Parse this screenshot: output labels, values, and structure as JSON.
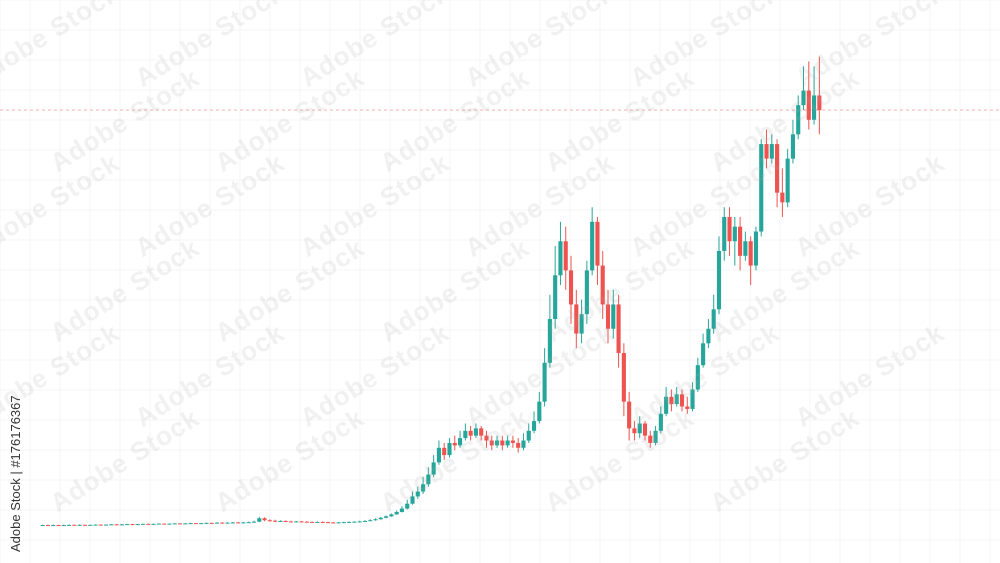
{
  "watermark": {
    "text": "Adobe Stock"
  },
  "credit": {
    "text": "Adobe Stock | #176176367"
  },
  "colors": {
    "up": "#26a69a",
    "down": "#ef5350",
    "grid": "#eeeeee",
    "reference_line": "#f4a4a4"
  },
  "chart_data": {
    "type": "candlestick",
    "title": "",
    "xlabel": "",
    "ylabel": "",
    "grid": true,
    "ylim": [
      0,
      100
    ],
    "reference_line": 86,
    "candles": [
      {
        "o": 0.5,
        "c": 0.6,
        "h": 0.7,
        "l": 0.4
      },
      {
        "o": 0.6,
        "c": 0.55,
        "h": 0.7,
        "l": 0.5
      },
      {
        "o": 0.55,
        "c": 0.6,
        "h": 0.7,
        "l": 0.5
      },
      {
        "o": 0.6,
        "c": 0.55,
        "h": 0.65,
        "l": 0.5
      },
      {
        "o": 0.55,
        "c": 0.6,
        "h": 0.7,
        "l": 0.5
      },
      {
        "o": 0.6,
        "c": 0.65,
        "h": 0.7,
        "l": 0.55
      },
      {
        "o": 0.65,
        "c": 0.6,
        "h": 0.7,
        "l": 0.55
      },
      {
        "o": 0.6,
        "c": 0.65,
        "h": 0.75,
        "l": 0.55
      },
      {
        "o": 0.65,
        "c": 0.6,
        "h": 0.7,
        "l": 0.55
      },
      {
        "o": 0.6,
        "c": 0.65,
        "h": 0.7,
        "l": 0.55
      },
      {
        "o": 0.65,
        "c": 0.7,
        "h": 0.75,
        "l": 0.6
      },
      {
        "o": 0.7,
        "c": 0.65,
        "h": 0.75,
        "l": 0.6
      },
      {
        "o": 0.65,
        "c": 0.7,
        "h": 0.75,
        "l": 0.6
      },
      {
        "o": 0.7,
        "c": 0.75,
        "h": 0.8,
        "l": 0.65
      },
      {
        "o": 0.75,
        "c": 0.7,
        "h": 0.8,
        "l": 0.65
      },
      {
        "o": 0.7,
        "c": 0.75,
        "h": 0.8,
        "l": 0.65
      },
      {
        "o": 0.75,
        "c": 0.8,
        "h": 0.85,
        "l": 0.7
      },
      {
        "o": 0.8,
        "c": 0.75,
        "h": 0.85,
        "l": 0.7
      },
      {
        "o": 0.75,
        "c": 0.8,
        "h": 0.85,
        "l": 0.7
      },
      {
        "o": 0.8,
        "c": 0.85,
        "h": 0.9,
        "l": 0.75
      },
      {
        "o": 0.85,
        "c": 0.8,
        "h": 0.9,
        "l": 0.75
      },
      {
        "o": 0.8,
        "c": 0.85,
        "h": 0.9,
        "l": 0.75
      },
      {
        "o": 0.85,
        "c": 0.9,
        "h": 0.95,
        "l": 0.8
      },
      {
        "o": 0.9,
        "c": 0.85,
        "h": 0.95,
        "l": 0.8
      },
      {
        "o": 0.85,
        "c": 0.9,
        "h": 0.95,
        "l": 0.8
      },
      {
        "o": 0.9,
        "c": 0.95,
        "h": 1.0,
        "l": 0.85
      },
      {
        "o": 0.95,
        "c": 0.9,
        "h": 1.0,
        "l": 0.85
      },
      {
        "o": 0.9,
        "c": 0.95,
        "h": 1.0,
        "l": 0.85
      },
      {
        "o": 0.95,
        "c": 1.0,
        "h": 1.05,
        "l": 0.9
      },
      {
        "o": 1.0,
        "c": 0.95,
        "h": 1.05,
        "l": 0.9
      },
      {
        "o": 0.95,
        "c": 1.0,
        "h": 1.05,
        "l": 0.9
      },
      {
        "o": 1.0,
        "c": 1.05,
        "h": 1.1,
        "l": 0.95
      },
      {
        "o": 1.05,
        "c": 1.0,
        "h": 1.1,
        "l": 0.95
      },
      {
        "o": 1.0,
        "c": 1.1,
        "h": 1.2,
        "l": 0.95
      },
      {
        "o": 1.1,
        "c": 1.05,
        "h": 1.2,
        "l": 1.0
      },
      {
        "o": 1.05,
        "c": 1.1,
        "h": 1.2,
        "l": 1.0
      },
      {
        "o": 1.1,
        "c": 1.15,
        "h": 1.25,
        "l": 1.05
      },
      {
        "o": 1.15,
        "c": 1.1,
        "h": 1.25,
        "l": 1.05
      },
      {
        "o": 1.1,
        "c": 1.15,
        "h": 1.25,
        "l": 1.05
      },
      {
        "o": 1.15,
        "c": 1.2,
        "h": 1.3,
        "l": 1.1
      },
      {
        "o": 1.2,
        "c": 1.3,
        "h": 1.5,
        "l": 1.1
      },
      {
        "o": 1.3,
        "c": 2.0,
        "h": 2.3,
        "l": 1.2
      },
      {
        "o": 2.0,
        "c": 1.6,
        "h": 2.2,
        "l": 1.4
      },
      {
        "o": 1.6,
        "c": 1.5,
        "h": 1.8,
        "l": 1.3
      },
      {
        "o": 1.5,
        "c": 1.4,
        "h": 1.7,
        "l": 1.2
      },
      {
        "o": 1.4,
        "c": 1.45,
        "h": 1.6,
        "l": 1.3
      },
      {
        "o": 1.45,
        "c": 1.35,
        "h": 1.55,
        "l": 1.2
      },
      {
        "o": 1.35,
        "c": 1.3,
        "h": 1.5,
        "l": 1.2
      },
      {
        "o": 1.3,
        "c": 1.35,
        "h": 1.45,
        "l": 1.2
      },
      {
        "o": 1.35,
        "c": 1.3,
        "h": 1.45,
        "l": 1.2
      },
      {
        "o": 1.3,
        "c": 1.25,
        "h": 1.4,
        "l": 1.15
      },
      {
        "o": 1.25,
        "c": 1.2,
        "h": 1.35,
        "l": 1.1
      },
      {
        "o": 1.2,
        "c": 1.25,
        "h": 1.35,
        "l": 1.1
      },
      {
        "o": 1.25,
        "c": 1.2,
        "h": 1.35,
        "l": 1.1
      },
      {
        "o": 1.2,
        "c": 1.15,
        "h": 1.3,
        "l": 1.05
      },
      {
        "o": 1.15,
        "c": 1.1,
        "h": 1.25,
        "l": 1.0
      },
      {
        "o": 1.1,
        "c": 1.15,
        "h": 1.25,
        "l": 1.0
      },
      {
        "o": 1.15,
        "c": 1.2,
        "h": 1.3,
        "l": 1.1
      },
      {
        "o": 1.2,
        "c": 1.25,
        "h": 1.35,
        "l": 1.1
      },
      {
        "o": 1.25,
        "c": 1.3,
        "h": 1.4,
        "l": 1.15
      },
      {
        "o": 1.3,
        "c": 1.35,
        "h": 1.5,
        "l": 1.2
      },
      {
        "o": 1.35,
        "c": 1.45,
        "h": 1.6,
        "l": 1.3
      },
      {
        "o": 1.45,
        "c": 1.6,
        "h": 1.8,
        "l": 1.4
      },
      {
        "o": 1.6,
        "c": 1.8,
        "h": 2.0,
        "l": 1.5
      },
      {
        "o": 1.8,
        "c": 2.1,
        "h": 2.3,
        "l": 1.7
      },
      {
        "o": 2.1,
        "c": 2.4,
        "h": 2.6,
        "l": 2.0
      },
      {
        "o": 2.4,
        "c": 2.8,
        "h": 3.0,
        "l": 2.3
      },
      {
        "o": 2.8,
        "c": 3.3,
        "h": 3.6,
        "l": 2.7
      },
      {
        "o": 3.3,
        "c": 4.0,
        "h": 4.5,
        "l": 3.2
      },
      {
        "o": 4.0,
        "c": 5.0,
        "h": 5.8,
        "l": 3.8
      },
      {
        "o": 5.0,
        "c": 6.5,
        "h": 7.5,
        "l": 4.8
      },
      {
        "o": 6.5,
        "c": 7.5,
        "h": 8.5,
        "l": 6.0
      },
      {
        "o": 7.5,
        "c": 9.0,
        "h": 10.5,
        "l": 7.0
      },
      {
        "o": 9.0,
        "c": 11.0,
        "h": 12.5,
        "l": 8.5
      },
      {
        "o": 11.0,
        "c": 13.5,
        "h": 15.0,
        "l": 10.5
      },
      {
        "o": 13.5,
        "c": 16.5,
        "h": 18.0,
        "l": 13.0
      },
      {
        "o": 16.5,
        "c": 15.0,
        "h": 17.5,
        "l": 14.0
      },
      {
        "o": 15.0,
        "c": 17.5,
        "h": 18.5,
        "l": 14.5
      },
      {
        "o": 17.5,
        "c": 17.0,
        "h": 19.0,
        "l": 16.0
      },
      {
        "o": 17.0,
        "c": 18.5,
        "h": 20.0,
        "l": 16.5
      },
      {
        "o": 18.5,
        "c": 20.0,
        "h": 21.5,
        "l": 18.0
      },
      {
        "o": 20.0,
        "c": 19.0,
        "h": 21.0,
        "l": 18.0
      },
      {
        "o": 19.0,
        "c": 20.5,
        "h": 21.5,
        "l": 18.5
      },
      {
        "o": 20.5,
        "c": 19.0,
        "h": 21.0,
        "l": 18.0
      },
      {
        "o": 19.0,
        "c": 18.0,
        "h": 20.0,
        "l": 16.5
      },
      {
        "o": 18.0,
        "c": 17.0,
        "h": 19.0,
        "l": 16.0
      },
      {
        "o": 17.0,
        "c": 18.0,
        "h": 19.0,
        "l": 16.5
      },
      {
        "o": 18.0,
        "c": 17.0,
        "h": 19.0,
        "l": 16.0
      },
      {
        "o": 17.0,
        "c": 18.0,
        "h": 19.0,
        "l": 16.5
      },
      {
        "o": 18.0,
        "c": 17.5,
        "h": 19.0,
        "l": 16.5
      },
      {
        "o": 17.5,
        "c": 16.5,
        "h": 18.5,
        "l": 15.5
      },
      {
        "o": 16.5,
        "c": 18.0,
        "h": 19.5,
        "l": 16.0
      },
      {
        "o": 18.0,
        "c": 20.0,
        "h": 21.5,
        "l": 17.5
      },
      {
        "o": 20.0,
        "c": 22.0,
        "h": 24.0,
        "l": 19.5
      },
      {
        "o": 22.0,
        "c": 26.0,
        "h": 28.0,
        "l": 21.5
      },
      {
        "o": 26.0,
        "c": 34.0,
        "h": 37.0,
        "l": 25.0
      },
      {
        "o": 34.0,
        "c": 43.0,
        "h": 48.0,
        "l": 33.0
      },
      {
        "o": 43.0,
        "c": 52.0,
        "h": 58.0,
        "l": 41.0
      },
      {
        "o": 52.0,
        "c": 59.0,
        "h": 63.0,
        "l": 50.0
      },
      {
        "o": 59.0,
        "c": 53.0,
        "h": 62.0,
        "l": 49.0
      },
      {
        "o": 53.0,
        "c": 46.0,
        "h": 56.0,
        "l": 42.0
      },
      {
        "o": 46.0,
        "c": 40.0,
        "h": 49.0,
        "l": 37.0
      },
      {
        "o": 40.0,
        "c": 44.0,
        "h": 47.0,
        "l": 38.0
      },
      {
        "o": 44.0,
        "c": 53.0,
        "h": 55.0,
        "l": 42.0
      },
      {
        "o": 53.0,
        "c": 63.0,
        "h": 66.0,
        "l": 52.0
      },
      {
        "o": 63.0,
        "c": 54.0,
        "h": 64.0,
        "l": 50.0
      },
      {
        "o": 54.0,
        "c": 46.0,
        "h": 57.0,
        "l": 43.0
      },
      {
        "o": 46.0,
        "c": 41.0,
        "h": 49.0,
        "l": 38.0
      },
      {
        "o": 41.0,
        "c": 46.0,
        "h": 49.0,
        "l": 39.0
      },
      {
        "o": 46.0,
        "c": 36.0,
        "h": 48.0,
        "l": 33.0
      },
      {
        "o": 36.0,
        "c": 26.0,
        "h": 38.0,
        "l": 23.0
      },
      {
        "o": 26.0,
        "c": 20.5,
        "h": 28.0,
        "l": 18.0
      },
      {
        "o": 20.5,
        "c": 19.5,
        "h": 22.0,
        "l": 18.0
      },
      {
        "o": 19.5,
        "c": 21.5,
        "h": 23.0,
        "l": 18.5
      },
      {
        "o": 21.5,
        "c": 19.0,
        "h": 22.0,
        "l": 18.0
      },
      {
        "o": 19.0,
        "c": 17.5,
        "h": 20.0,
        "l": 16.5
      },
      {
        "o": 17.5,
        "c": 20.0,
        "h": 21.0,
        "l": 17.0
      },
      {
        "o": 20.0,
        "c": 23.5,
        "h": 25.0,
        "l": 19.5
      },
      {
        "o": 23.5,
        "c": 27.0,
        "h": 29.0,
        "l": 23.0
      },
      {
        "o": 27.0,
        "c": 25.5,
        "h": 28.5,
        "l": 24.0
      },
      {
        "o": 25.5,
        "c": 27.5,
        "h": 29.0,
        "l": 25.0
      },
      {
        "o": 27.5,
        "c": 25.0,
        "h": 28.5,
        "l": 24.0
      },
      {
        "o": 25.0,
        "c": 24.5,
        "h": 27.0,
        "l": 23.5
      },
      {
        "o": 24.5,
        "c": 28.5,
        "h": 30.0,
        "l": 24.0
      },
      {
        "o": 28.5,
        "c": 33.5,
        "h": 35.0,
        "l": 28.0
      },
      {
        "o": 33.5,
        "c": 38.0,
        "h": 40.0,
        "l": 33.0
      },
      {
        "o": 38.0,
        "c": 41.0,
        "h": 43.0,
        "l": 37.0
      },
      {
        "o": 41.0,
        "c": 45.0,
        "h": 48.0,
        "l": 40.0
      },
      {
        "o": 45.0,
        "c": 57.0,
        "h": 60.0,
        "l": 44.0
      },
      {
        "o": 57.0,
        "c": 64.0,
        "h": 66.0,
        "l": 55.0
      },
      {
        "o": 64.0,
        "c": 59.0,
        "h": 66.0,
        "l": 56.0
      },
      {
        "o": 59.0,
        "c": 62.0,
        "h": 64.0,
        "l": 54.0
      },
      {
        "o": 62.0,
        "c": 56.0,
        "h": 64.0,
        "l": 53.0
      },
      {
        "o": 56.0,
        "c": 59.0,
        "h": 61.0,
        "l": 55.0
      },
      {
        "o": 59.0,
        "c": 54.0,
        "h": 60.0,
        "l": 50.0
      },
      {
        "o": 54.0,
        "c": 61.0,
        "h": 62.0,
        "l": 53.0
      },
      {
        "o": 61.0,
        "c": 79.0,
        "h": 80.0,
        "l": 60.0
      },
      {
        "o": 79.0,
        "c": 76.0,
        "h": 82.0,
        "l": 74.0
      },
      {
        "o": 76.0,
        "c": 79.0,
        "h": 81.0,
        "l": 75.0
      },
      {
        "o": 79.0,
        "c": 69.0,
        "h": 80.0,
        "l": 66.0
      },
      {
        "o": 69.0,
        "c": 67.0,
        "h": 74.0,
        "l": 64.0
      },
      {
        "o": 67.0,
        "c": 76.0,
        "h": 78.0,
        "l": 66.0
      },
      {
        "o": 76.0,
        "c": 81.0,
        "h": 84.0,
        "l": 75.0
      },
      {
        "o": 81.0,
        "c": 87.0,
        "h": 89.0,
        "l": 80.0
      },
      {
        "o": 87.0,
        "c": 90.0,
        "h": 95.0,
        "l": 86.0
      },
      {
        "o": 90.0,
        "c": 84.0,
        "h": 96.0,
        "l": 82.0
      },
      {
        "o": 84.0,
        "c": 89.0,
        "h": 95.0,
        "l": 83.0
      },
      {
        "o": 89.0,
        "c": 86.0,
        "h": 97.0,
        "l": 81.0
      }
    ]
  }
}
